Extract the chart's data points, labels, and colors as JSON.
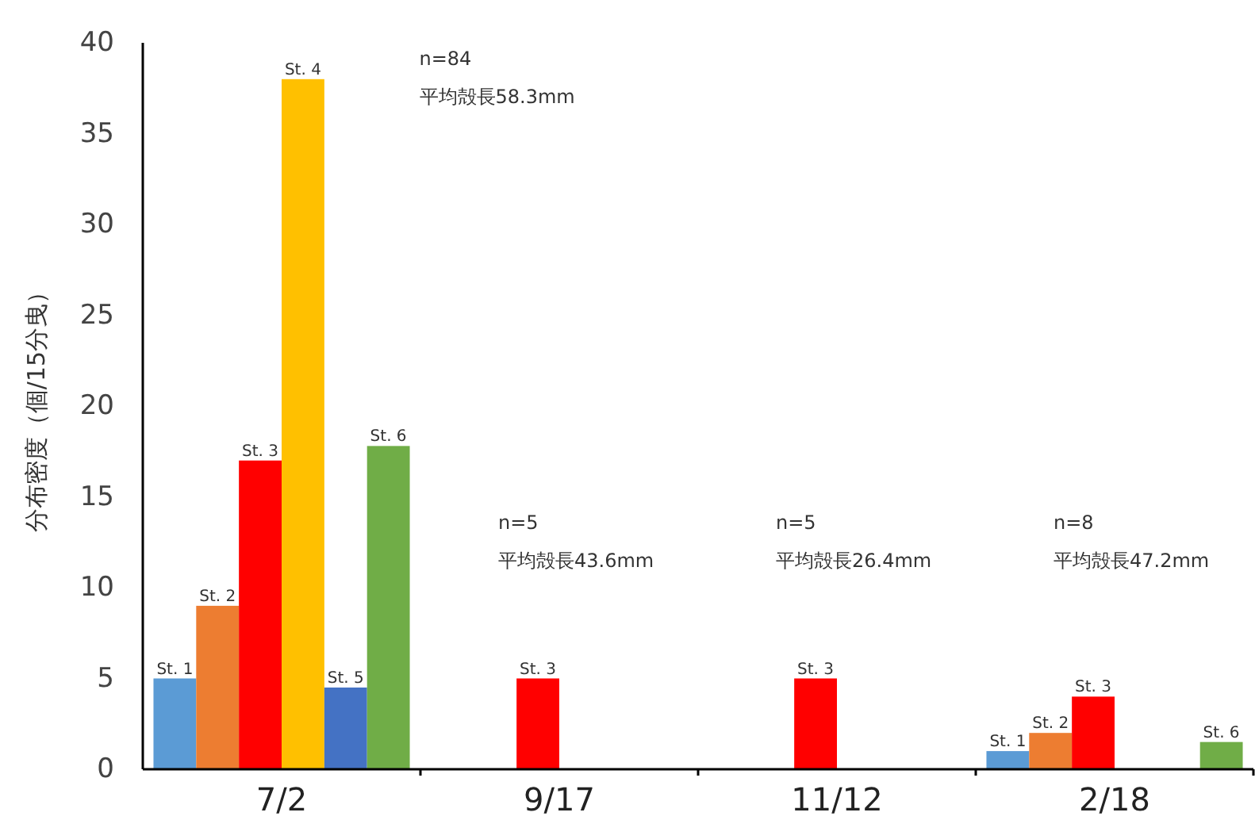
{
  "chart_data": {
    "type": "bar",
    "ylabel": "分布密度（個/15分曳）",
    "categories": [
      "7/2",
      "9/17",
      "11/12",
      "2/18"
    ],
    "ylim": [
      0,
      40
    ],
    "yticks": [
      0,
      5,
      10,
      15,
      20,
      25,
      30,
      35,
      40
    ],
    "grid": false,
    "series": [
      {
        "name": "St. 1",
        "color": "#5b9bd5",
        "values": [
          5,
          null,
          null,
          1
        ]
      },
      {
        "name": "St. 2",
        "color": "#ed7d31",
        "values": [
          9,
          null,
          null,
          2
        ]
      },
      {
        "name": "St. 3",
        "color": "#ff0000",
        "values": [
          17,
          5,
          5,
          4
        ]
      },
      {
        "name": "St. 4",
        "color": "#ffc000",
        "values": [
          38,
          null,
          null,
          null
        ]
      },
      {
        "name": "St. 5",
        "color": "#4472c4",
        "values": [
          4.5,
          null,
          null,
          null
        ]
      },
      {
        "name": "St. 6",
        "color": "#70ad47",
        "values": [
          17.8,
          null,
          null,
          1.5
        ]
      }
    ],
    "annotations": [
      "n=84",
      "平均殻長58.3mm",
      "n=5",
      "平均殻長43.6mm",
      "n=5",
      "平均殻長26.4mm",
      "n=8",
      "平均殻長47.2mm"
    ]
  }
}
